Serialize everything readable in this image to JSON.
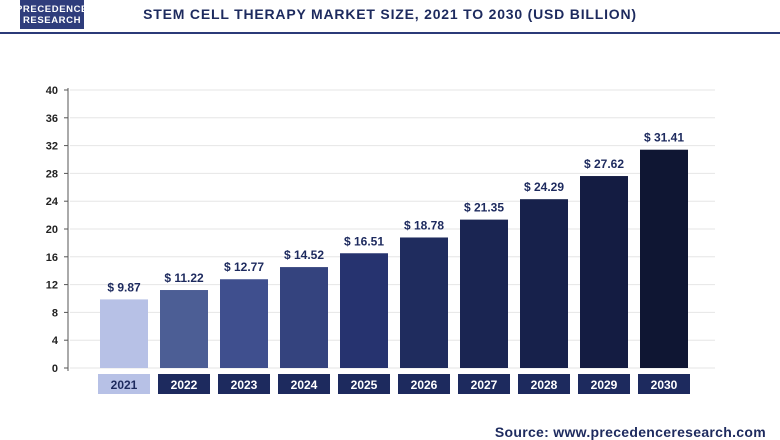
{
  "header": {
    "logo_line1": "PRECEDENCE",
    "logo_line2": "RESEARCH",
    "title": "STEM CELL THERAPY MARKET SIZE, 2021 TO 2030 (USD BILLION)"
  },
  "footer": {
    "source": "Source: www.precedenceresearch.com"
  },
  "colors": {
    "title": "#1d2a5e",
    "accent": "#2b3a78",
    "axis_label_bg": "#1d2a5e"
  },
  "chart_data": {
    "type": "bar",
    "title": "STEM CELL THERAPY MARKET SIZE, 2021 TO 2030 (USD BILLION)",
    "xlabel": "",
    "ylabel": "",
    "ylim": [
      0,
      40
    ],
    "yticks": [
      0,
      4,
      8,
      12,
      16,
      20,
      24,
      28,
      32,
      36,
      40
    ],
    "grid": true,
    "categories": [
      "2021",
      "2022",
      "2023",
      "2024",
      "2025",
      "2026",
      "2027",
      "2028",
      "2029",
      "2030"
    ],
    "values": [
      9.87,
      11.22,
      12.77,
      14.52,
      16.51,
      18.78,
      21.35,
      24.29,
      27.62,
      31.41
    ],
    "value_labels": [
      "$ 9.87",
      "$ 11.22",
      "$ 12.77",
      "$ 14.52",
      "$ 16.51",
      "$ 18.78",
      "$ 21.35",
      "$ 24.29",
      "$ 27.62",
      "$ 31.41"
    ],
    "bar_colors": [
      "#b7c1e6",
      "#4c5e95",
      "#3f4f8e",
      "#34437e",
      "#26336f",
      "#1f2c5e",
      "#1a2552",
      "#17214b",
      "#141c42",
      "#0f1633"
    ]
  }
}
